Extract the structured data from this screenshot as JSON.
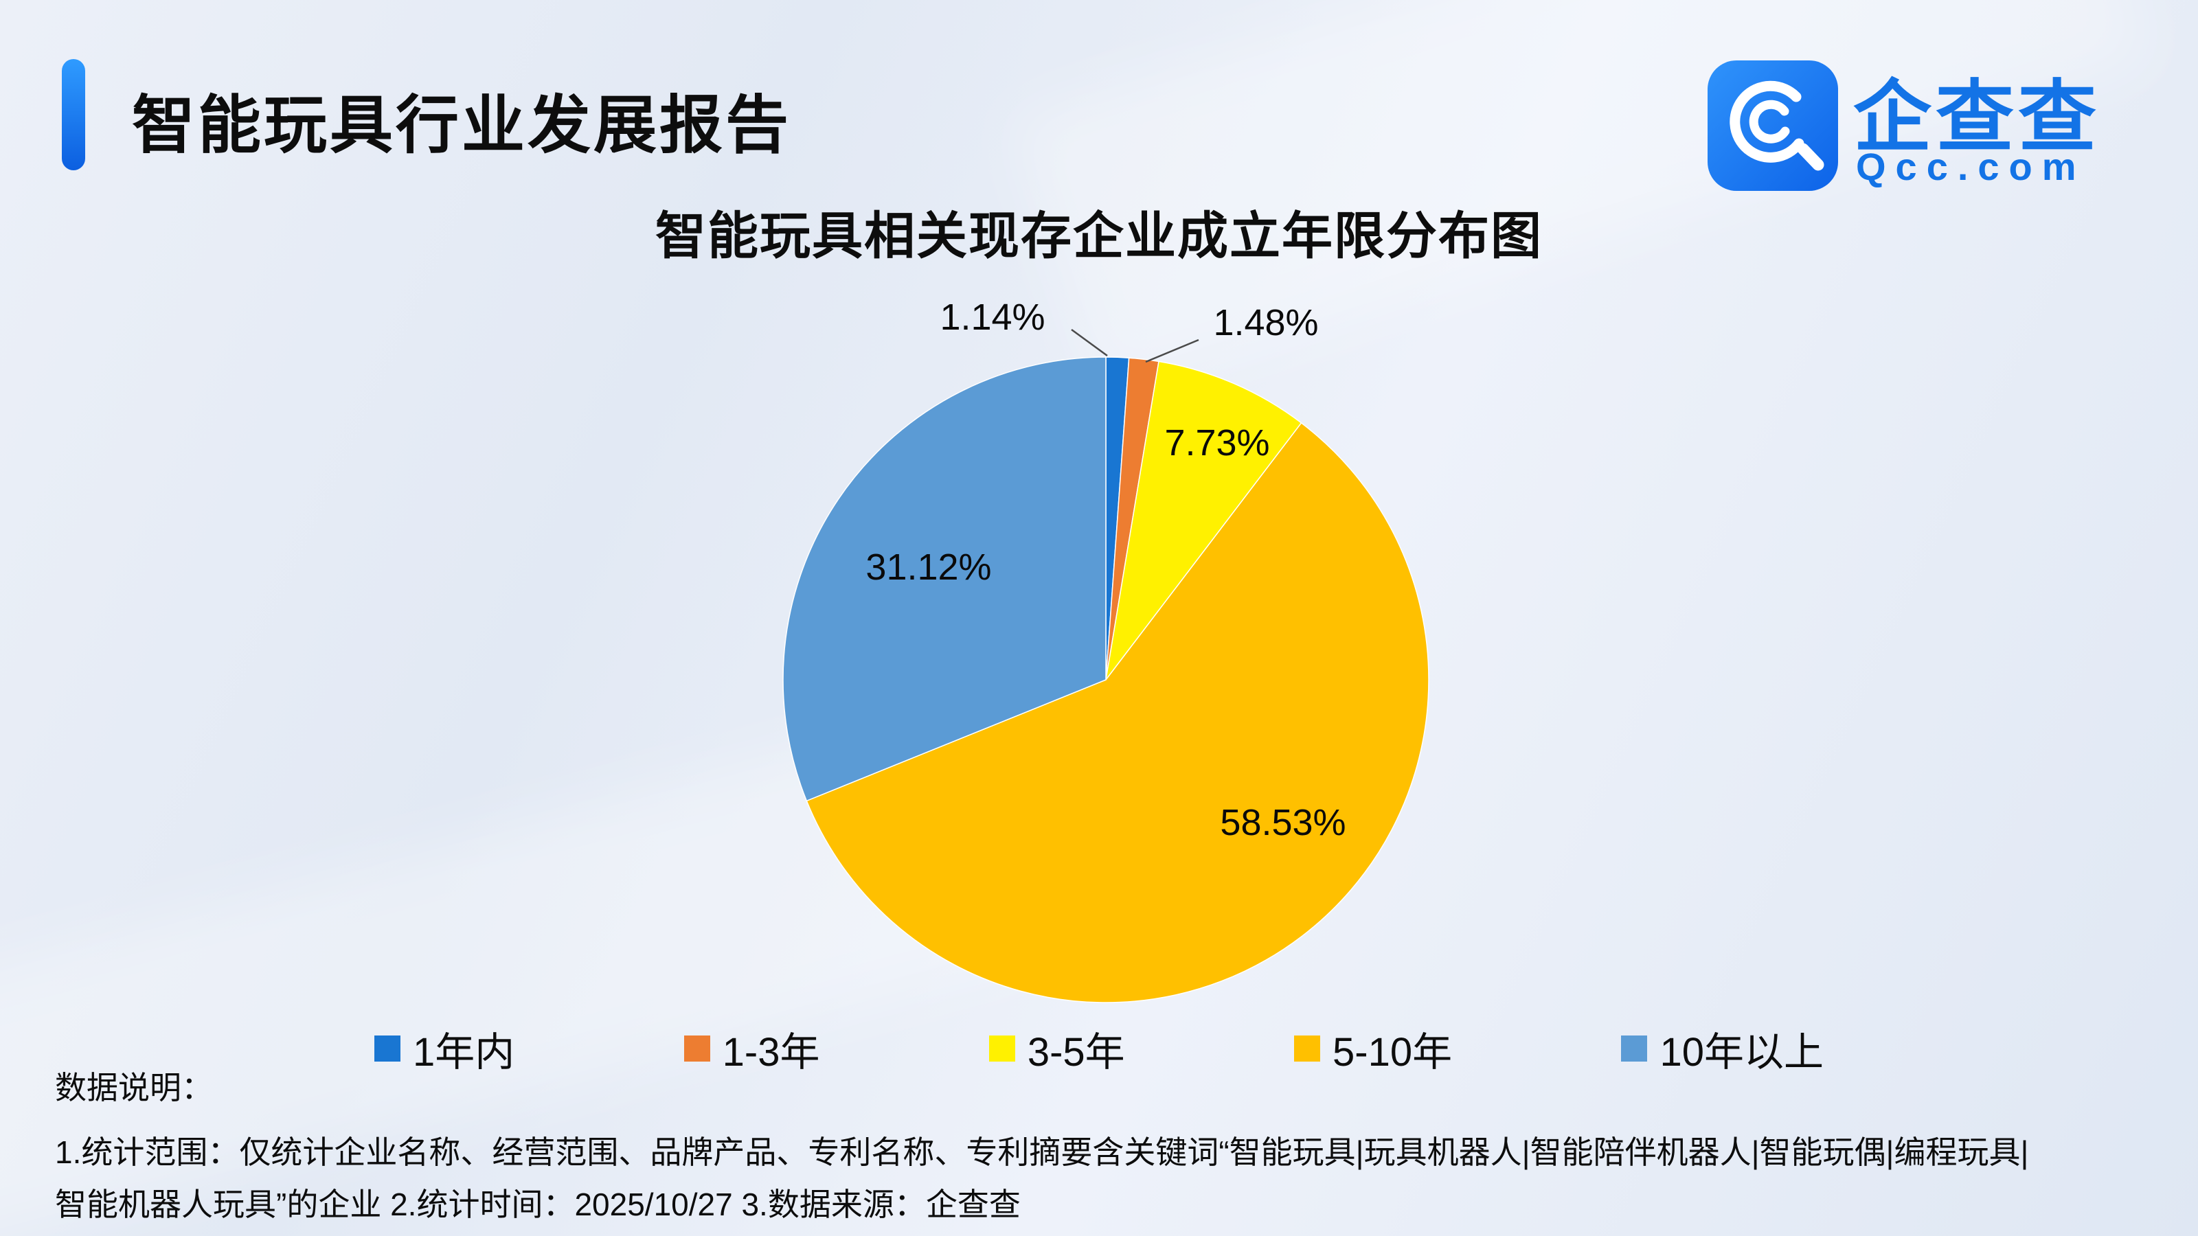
{
  "header": {
    "title": "智能玩具行业发展报告"
  },
  "logo": {
    "brand": "企查查",
    "domain": "Qcc.com",
    "brand_color": "#1373e6"
  },
  "chart_data": {
    "type": "pie",
    "title": "智能玩具相关现存企业成立年限分布图",
    "categories": [
      "1年内",
      "1-3年",
      "3-5年",
      "5-10年",
      "10年以上"
    ],
    "values": [
      1.14,
      1.48,
      7.73,
      58.53,
      31.12
    ],
    "labels": [
      "1.14%",
      "1.48%",
      "7.73%",
      "58.53%",
      "31.12%"
    ],
    "colors": [
      "#1976d2",
      "#ed7d31",
      "#fff100",
      "#ffc000",
      "#5b9bd5"
    ],
    "start_angle_deg": 0,
    "direction": "clockwise",
    "legend_position": "bottom"
  },
  "footer": {
    "heading": "数据说明：",
    "line1": "1.统计范围：仅统计企业名称、经营范围、品牌产品、专利名称、专利摘要含关键词“智能玩具|玩具机器人|智能陪伴机器人|智能玩偶|编程玩具|",
    "line2": "智能机器人玩具”的企业 2.统计时间：2025/10/27 3.数据来源：企查查"
  }
}
